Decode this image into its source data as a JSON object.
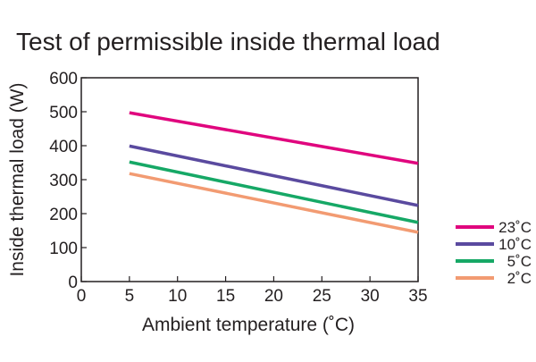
{
  "chart_data": {
    "type": "line",
    "title": "Test of permissible inside thermal load",
    "xlabel": "Ambient temperature (˚C)",
    "ylabel": "Inside thermal load (W)",
    "xlim": [
      0,
      35
    ],
    "ylim": [
      0,
      600
    ],
    "xticks": [
      0,
      5,
      10,
      15,
      20,
      25,
      30,
      35
    ],
    "yticks": [
      0,
      100,
      200,
      300,
      400,
      500,
      600
    ],
    "grid": false,
    "legend_position": "bottom-right, outside plot",
    "series": [
      {
        "name": "23˚C",
        "color": "#e0067e",
        "x": [
          5,
          35
        ],
        "y": [
          497,
          348
        ]
      },
      {
        "name": "10˚C",
        "color": "#5a4a9f",
        "x": [
          5,
          35
        ],
        "y": [
          399,
          224
        ]
      },
      {
        "name": "5˚C",
        "color": "#16a866",
        "x": [
          5,
          35
        ],
        "y": [
          352,
          174
        ]
      },
      {
        "name": "2˚C",
        "color": "#f29b72",
        "x": [
          5,
          35
        ],
        "y": [
          318,
          145
        ]
      }
    ]
  }
}
